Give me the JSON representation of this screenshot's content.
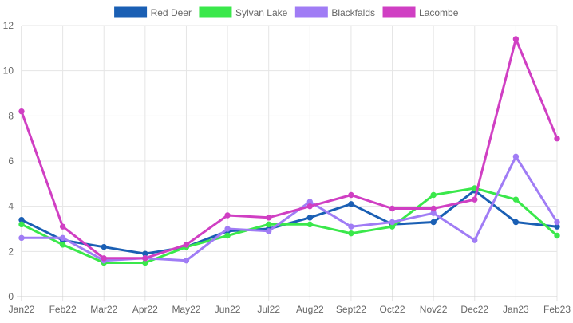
{
  "chart_data": {
    "type": "line",
    "title": "",
    "xlabel": "",
    "ylabel": "",
    "categories": [
      "Jan22",
      "Feb22",
      "Mar22",
      "Apr22",
      "May22",
      "Jun22",
      "Jul22",
      "Aug22",
      "Sept22",
      "Oct22",
      "Nov22",
      "Dec22",
      "Jan23",
      "Feb23"
    ],
    "ylim": [
      0,
      12
    ],
    "y_ticks": [
      0,
      2,
      4,
      6,
      8,
      10,
      12
    ],
    "grid": true,
    "legend_position": "top",
    "series": [
      {
        "name": "Red Deer",
        "color": "#1a5fb4",
        "values": [
          3.4,
          2.5,
          2.2,
          1.9,
          2.2,
          2.9,
          3.0,
          3.5,
          4.1,
          3.2,
          3.3,
          4.7,
          3.3,
          3.1
        ]
      },
      {
        "name": "Sylvan Lake",
        "color": "#3ae84b",
        "values": [
          3.2,
          2.3,
          1.5,
          1.5,
          2.2,
          2.7,
          3.2,
          3.2,
          2.8,
          3.1,
          4.5,
          4.8,
          4.3,
          2.7
        ]
      },
      {
        "name": "Blackfalds",
        "color": "#a07cf5",
        "values": [
          2.6,
          2.6,
          1.6,
          1.7,
          1.6,
          3.0,
          2.9,
          4.2,
          3.1,
          3.3,
          3.7,
          2.5,
          6.2,
          3.3
        ]
      },
      {
        "name": "Lacombe",
        "color": "#d03fc3",
        "values": [
          8.2,
          3.1,
          1.7,
          1.7,
          2.3,
          3.6,
          3.5,
          4.0,
          4.5,
          3.9,
          3.9,
          4.3,
          11.4,
          7.0
        ]
      }
    ]
  }
}
